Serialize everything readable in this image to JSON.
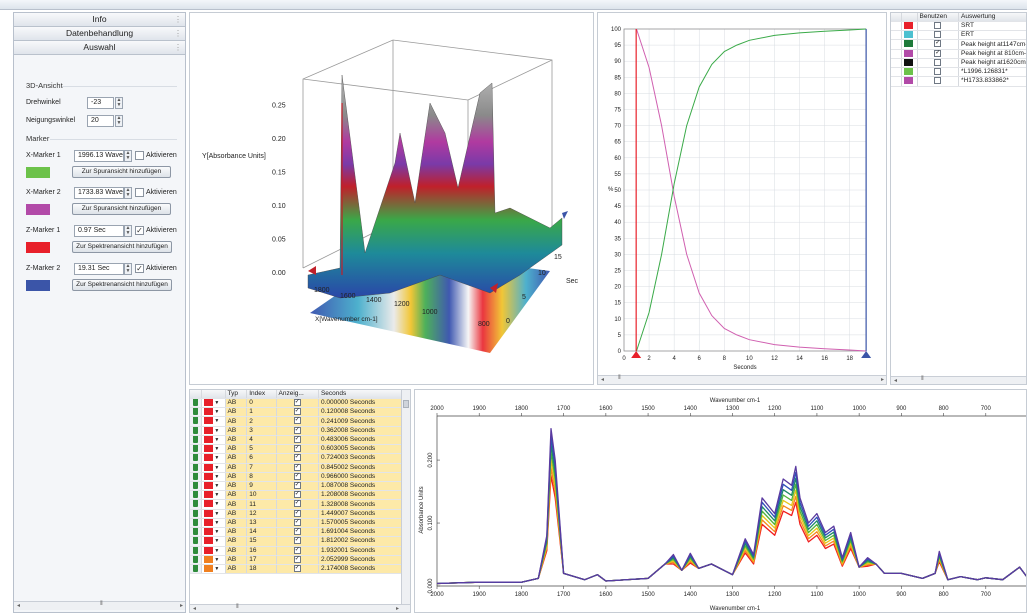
{
  "sidebar": {
    "accordion": [
      "Info",
      "Datenbehandlung",
      "Auswahl"
    ],
    "view3d": {
      "title": "3D-Ansicht",
      "drehwinkel_label": "Drehwinkel",
      "drehwinkel_value": "-23",
      "neigung_label": "Neigungswinkel",
      "neigung_value": "20"
    },
    "marker_title": "Marker",
    "activate_label": "Aktivieren",
    "markers": [
      {
        "label": "X-Marker 1",
        "value": "1996.13 Waver",
        "active": false,
        "button": "Zur Spuransicht hinzufügen",
        "color": "#6cc24a"
      },
      {
        "label": "X-Marker 2",
        "value": "1733.83 Waver",
        "active": false,
        "button": "Zur Spuransicht hinzufügen",
        "color": "#b24aa8"
      },
      {
        "label": "Z-Marker 1",
        "value": "0.97 Sec",
        "active": true,
        "button": "Zur Spektrenansicht hinzufügen",
        "color": "#e8202a"
      },
      {
        "label": "Z-Marker 2",
        "value": "19.31 Sec",
        "active": true,
        "button": "Zur Spektrenansicht hinzufügen",
        "color": "#3b55a8"
      }
    ]
  },
  "plot3d": {
    "ylabel": "Y[Absorbance Units]",
    "xlabel": "X[Wavenumber cm-1]",
    "zlabel": "Sec",
    "yticks": [
      "0.00",
      "0.05",
      "0.10",
      "0.15",
      "0.20",
      "0.25"
    ],
    "xticks": [
      "1800",
      "1600",
      "1400",
      "1200",
      "1000",
      "800"
    ],
    "zticks": [
      "0",
      "5",
      "10",
      "15"
    ]
  },
  "trend": {
    "ylabel": "%",
    "xlabel": "Seconds",
    "yticks": [
      "0",
      "5",
      "10",
      "15",
      "20",
      "25",
      "30",
      "35",
      "40",
      "45",
      "50",
      "55",
      "60",
      "65",
      "70",
      "75",
      "80",
      "85",
      "90",
      "95",
      "100"
    ],
    "xticks": [
      "0",
      "2",
      "4",
      "6",
      "8",
      "10",
      "12",
      "14",
      "16",
      "18"
    ],
    "chart_data": {
      "type": "line",
      "xlim": [
        0,
        19.3
      ],
      "ylim": [
        0,
        100
      ],
      "series": [
        {
          "color": "#d060b0",
          "x": [
            1,
            2,
            3,
            4,
            5,
            6,
            7,
            8,
            9,
            10,
            12,
            14,
            16,
            18,
            19.3
          ],
          "values": [
            100,
            88,
            70,
            48,
            30,
            18,
            11,
            7,
            5,
            3.5,
            2,
            1.2,
            0.7,
            0.3,
            0
          ]
        },
        {
          "color": "#3aaa48",
          "x": [
            1,
            2,
            3,
            4,
            5,
            6,
            7,
            8,
            9,
            10,
            12,
            14,
            16,
            18,
            19.3
          ],
          "values": [
            0,
            12,
            30,
            52,
            70,
            82,
            89,
            93,
            95,
            96.5,
            98,
            98.8,
            99.3,
            99.7,
            100
          ]
        }
      ],
      "markers": [
        {
          "x": 0.97,
          "color": "#e8202a"
        },
        {
          "x": 19.31,
          "color": "#3b55a8"
        }
      ]
    }
  },
  "legend_table": {
    "headers": [
      "Benutzen",
      "Auswertung"
    ],
    "rows": [
      {
        "color": "#e8202a",
        "checked": false,
        "name": "SRT"
      },
      {
        "color": "#4cc0d0",
        "checked": false,
        "name": "ERT"
      },
      {
        "color": "#1e7a3a",
        "checked": true,
        "name": "Peak height at1147cm-"
      },
      {
        "color": "#b24aa8",
        "checked": true,
        "name": "Peak height at 810cm-"
      },
      {
        "color": "#111111",
        "checked": false,
        "name": "Peak height at1620cm-"
      },
      {
        "color": "#6cc24a",
        "checked": false,
        "name": "*L1996.126831*"
      },
      {
        "color": "#b24aa8",
        "checked": false,
        "name": "*H1733.833862*"
      }
    ]
  },
  "spectra_table": {
    "headers": [
      "Typ",
      "Index",
      "Anzeig...",
      "Seconds"
    ],
    "rows": [
      {
        "typ": "AB",
        "index": "0",
        "sec": "0.000000 Seconds",
        "color": "#e8202a"
      },
      {
        "typ": "AB",
        "index": "1",
        "sec": "0.120008 Seconds",
        "color": "#e8202a"
      },
      {
        "typ": "AB",
        "index": "2",
        "sec": "0.241009 Seconds",
        "color": "#e8202a"
      },
      {
        "typ": "AB",
        "index": "3",
        "sec": "0.362008 Seconds",
        "color": "#e8202a"
      },
      {
        "typ": "AB",
        "index": "4",
        "sec": "0.483006 Seconds",
        "color": "#e8202a"
      },
      {
        "typ": "AB",
        "index": "5",
        "sec": "0.603005 Seconds",
        "color": "#e8202a"
      },
      {
        "typ": "AB",
        "index": "6",
        "sec": "0.724003 Seconds",
        "color": "#e8202a"
      },
      {
        "typ": "AB",
        "index": "7",
        "sec": "0.845002 Seconds",
        "color": "#e8202a"
      },
      {
        "typ": "AB",
        "index": "8",
        "sec": "0.966000 Seconds",
        "color": "#e8202a"
      },
      {
        "typ": "AB",
        "index": "9",
        "sec": "1.087008 Seconds",
        "color": "#e8202a"
      },
      {
        "typ": "AB",
        "index": "10",
        "sec": "1.208008 Seconds",
        "color": "#e8202a"
      },
      {
        "typ": "AB",
        "index": "11",
        "sec": "1.328008 Seconds",
        "color": "#e8202a"
      },
      {
        "typ": "AB",
        "index": "12",
        "sec": "1.449007 Seconds",
        "color": "#e8202a"
      },
      {
        "typ": "AB",
        "index": "13",
        "sec": "1.570005 Seconds",
        "color": "#e8202a"
      },
      {
        "typ": "AB",
        "index": "14",
        "sec": "1.691004 Seconds",
        "color": "#e8202a"
      },
      {
        "typ": "AB",
        "index": "15",
        "sec": "1.812002 Seconds",
        "color": "#e8202a"
      },
      {
        "typ": "AB",
        "index": "16",
        "sec": "1.932001 Seconds",
        "color": "#e8202a"
      },
      {
        "typ": "AB",
        "index": "17",
        "sec": "2.052999 Seconds",
        "color": "#f08020"
      },
      {
        "typ": "AB",
        "index": "18",
        "sec": "2.174008 Seconds",
        "color": "#f08020"
      }
    ]
  },
  "spectrum": {
    "title": "Wavenumber cm-1",
    "ylabel": "Absorbance Units",
    "xticks": [
      "2000",
      "1900",
      "1800",
      "1700",
      "1600",
      "1500",
      "1400",
      "1300",
      "1200",
      "1100",
      "1000",
      "900",
      "800",
      "700",
      "60"
    ],
    "yticks": [
      "0.000",
      "0.100",
      "0.200"
    ],
    "chart_data": {
      "type": "line",
      "xlim": [
        2000,
        600
      ],
      "ylim": [
        0,
        0.27
      ],
      "x": [
        2000,
        1900,
        1800,
        1760,
        1740,
        1730,
        1720,
        1700,
        1650,
        1620,
        1600,
        1500,
        1460,
        1440,
        1420,
        1400,
        1380,
        1350,
        1300,
        1270,
        1250,
        1230,
        1200,
        1180,
        1160,
        1150,
        1140,
        1120,
        1100,
        1080,
        1060,
        1040,
        1020,
        1000,
        980,
        960,
        940,
        900,
        850,
        820,
        810,
        790,
        760,
        720,
        700,
        660,
        620,
        600
      ],
      "values": [
        0.004,
        0.006,
        0.006,
        0.012,
        0.08,
        0.25,
        0.2,
        0.02,
        0.01,
        0.018,
        0.008,
        0.012,
        0.035,
        0.05,
        0.025,
        0.052,
        0.028,
        0.035,
        0.018,
        0.075,
        0.05,
        0.14,
        0.115,
        0.17,
        0.16,
        0.19,
        0.14,
        0.1,
        0.115,
        0.085,
        0.095,
        0.045,
        0.085,
        0.03,
        0.045,
        0.035,
        0.02,
        0.02,
        0.012,
        0.02,
        0.055,
        0.01,
        0.015,
        0.01,
        0.013,
        0.01,
        0.03,
        0.012
      ],
      "series_colors": [
        "#f01e1e",
        "#f58a1e",
        "#e6c51a",
        "#52b43a",
        "#1e8a66",
        "#3050b8",
        "#5a3aa0"
      ]
    }
  }
}
